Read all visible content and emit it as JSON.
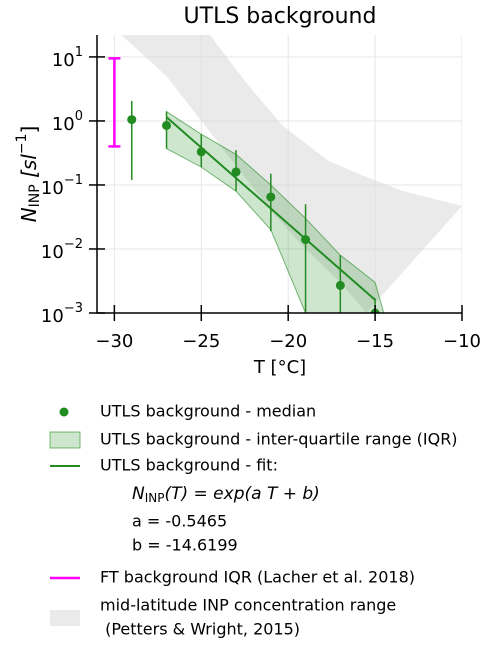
{
  "chart_data": {
    "type": "scatter",
    "title": "UTLS background",
    "xlabel": "T [°C]",
    "ylabel": [
      "N",
      "INP",
      " [sl",
      "−1",
      "]"
    ],
    "xlim": [
      -31,
      -10
    ],
    "xticks": [
      {
        "value": -30,
        "label": "−30"
      },
      {
        "value": -25,
        "label": "−25"
      },
      {
        "value": -20,
        "label": "−20"
      },
      {
        "value": -15,
        "label": "−15"
      },
      {
        "value": -10,
        "label": "−10"
      }
    ],
    "ylim": [
      0.001,
      22
    ],
    "log_y": true,
    "yticks": [
      {
        "value": 0.001,
        "label": "10",
        "sup": "−3"
      },
      {
        "value": 0.01,
        "label": "10",
        "sup": "−2"
      },
      {
        "value": 0.1,
        "label": "10",
        "sup": "−1"
      },
      {
        "value": 1,
        "label": "10",
        "sup": "0"
      },
      {
        "value": 10,
        "label": "10",
        "sup": "1"
      }
    ],
    "grid": true,
    "series": [
      {
        "name": "UTLS background - median",
        "color": "#228b22",
        "x": [
          -29,
          -27,
          -25,
          -23,
          -21,
          -19,
          -17,
          -15
        ],
        "values": [
          1.05,
          0.85,
          0.33,
          0.16,
          0.065,
          0.014,
          0.0027,
          0.001
        ],
        "upper": [
          2.05,
          1.4,
          0.62,
          0.35,
          0.15,
          0.05,
          0.008,
          0.0017
        ],
        "lower": [
          0.12,
          0.37,
          0.19,
          0.08,
          0.019,
          0.001,
          0.001,
          0.001
        ]
      },
      {
        "name": "UTLS background - inter-quartile range (IQR)",
        "color": "#228b22",
        "x": [
          -27,
          -25,
          -23,
          -21,
          -19,
          -17,
          -15,
          -14.5
        ],
        "upper": [
          1.4,
          0.62,
          0.3,
          0.1,
          0.03,
          0.008,
          0.003,
          0.001
        ],
        "lower": [
          0.37,
          0.19,
          0.08,
          0.02,
          0.001,
          0.001,
          0.001,
          0.001
        ]
      },
      {
        "name": "UTLS background - fit:",
        "color": "#228b22",
        "formula": [
          "N",
          "INP",
          "(T) = exp(a T + b)"
        ],
        "params": [
          "a = -0.5465",
          "b = -14.6199"
        ],
        "x": [
          -27,
          -15
        ],
        "values": [
          1.145,
          0.0016
        ]
      },
      {
        "name": "FT background IQR (Lacher et al. 2018)",
        "color": "#ff00ff",
        "x": [
          -30
        ],
        "upper": [
          9.5
        ],
        "lower": [
          0.4
        ]
      },
      {
        "name": [
          "mid-latitude INP concentration range",
          " (Petters & Wright, 2015)"
        ],
        "color": "#d9d9d9",
        "upper_x": [
          -31,
          -24.5,
          -22.5,
          -20.3,
          -17.7,
          -15.7,
          -13.4,
          -10
        ],
        "upper": [
          22,
          22,
          4.2,
          0.83,
          0.24,
          0.14,
          0.08,
          0.047
        ],
        "lower_x": [
          -29.6,
          -27,
          -25,
          -23,
          -21,
          -19,
          -17,
          -15.5
        ],
        "lower": [
          22,
          5,
          1,
          0.2,
          0.04,
          0.01,
          0.003,
          0.001
        ]
      }
    ]
  }
}
